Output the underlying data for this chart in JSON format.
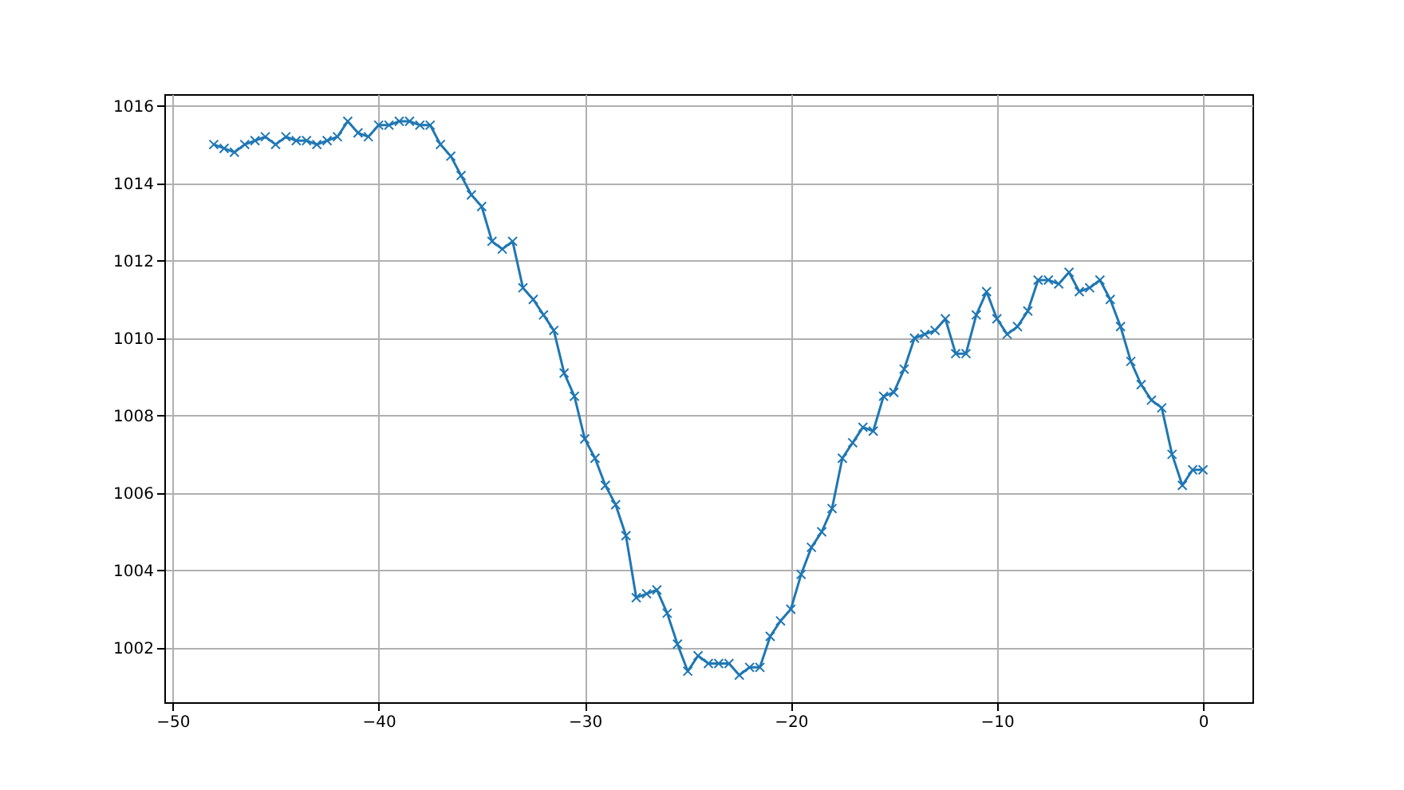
{
  "chart_data": {
    "type": "line",
    "marker": "cross",
    "grid": true,
    "x": [
      -48,
      -47.5,
      -47,
      -46.5,
      -46,
      -45.5,
      -45,
      -44.5,
      -44,
      -43.5,
      -43,
      -42.5,
      -42,
      -41.5,
      -41,
      -40.5,
      -40,
      -39.5,
      -39,
      -38.5,
      -38,
      -37.5,
      -37,
      -36.5,
      -36,
      -35.5,
      -35,
      -34.5,
      -34,
      -33.5,
      -33,
      -32.5,
      -32,
      -31.5,
      -31,
      -30.5,
      -30,
      -29.5,
      -29,
      -28.5,
      -28,
      -27.5,
      -27,
      -26.5,
      -26,
      -25.5,
      -25,
      -24.5,
      -24,
      -23.5,
      -23,
      -22.5,
      -22,
      -21.5,
      -21,
      -20.5,
      -20,
      -19.5,
      -19,
      -18.5,
      -18,
      -17.5,
      -17,
      -16.5,
      -16,
      -15.5,
      -15,
      -14.5,
      -14,
      -13.5,
      -13,
      -12.5,
      -12,
      -11.5,
      -11,
      -10.5,
      -10,
      -9.5,
      -9,
      -8.5,
      -8,
      -7.5,
      -7,
      -6.5,
      -6,
      -5.5,
      -5,
      -4.5,
      -4,
      -3.5,
      -3,
      -2.5,
      -2,
      -1.5,
      -1,
      -0.5,
      0
    ],
    "series": [
      {
        "color": "#1f77b4",
        "values": [
          1015.0,
          1014.9,
          1014.8,
          1015.0,
          1015.1,
          1015.2,
          1015.0,
          1015.2,
          1015.1,
          1015.1,
          1015.0,
          1015.1,
          1015.2,
          1015.6,
          1015.3,
          1015.2,
          1015.5,
          1015.5,
          1015.6,
          1015.6,
          1015.5,
          1015.5,
          1015.0,
          1014.7,
          1014.2,
          1013.7,
          1013.4,
          1012.5,
          1012.3,
          1012.5,
          1011.3,
          1011.0,
          1010.6,
          1010.2,
          1009.1,
          1008.5,
          1007.4,
          1006.9,
          1006.2,
          1005.7,
          1004.9,
          1003.3,
          1003.4,
          1003.5,
          1002.9,
          1002.1,
          1001.4,
          1001.8,
          1001.6,
          1001.6,
          1001.6,
          1001.3,
          1001.5,
          1001.5,
          1002.3,
          1002.7,
          1003.0,
          1003.9,
          1004.6,
          1005.0,
          1005.6,
          1006.9,
          1007.3,
          1007.7,
          1007.6,
          1008.5,
          1008.6,
          1009.2,
          1010.0,
          1010.1,
          1010.2,
          1010.5,
          1009.6,
          1009.6,
          1010.6,
          1011.2,
          1010.5,
          1010.1,
          1010.3,
          1010.7,
          1011.5,
          1011.5,
          1011.4,
          1011.7,
          1011.2,
          1011.3,
          1011.5,
          1011.0,
          1010.3,
          1009.4,
          1008.8,
          1008.4,
          1008.2,
          1007.0,
          1006.2,
          1006.6,
          1006.6
        ]
      }
    ],
    "xlim": [
      -50.4,
      2.4
    ],
    "xticks": [
      -50,
      -40,
      -30,
      -20,
      -10,
      0
    ],
    "ylim": [
      1000.6,
      1016.3
    ],
    "yticks": [
      1002,
      1004,
      1006,
      1008,
      1010,
      1012,
      1014,
      1016
    ]
  }
}
